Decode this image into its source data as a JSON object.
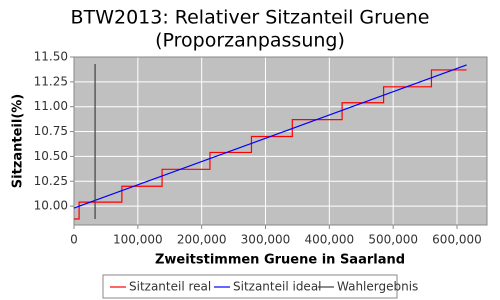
{
  "chart_data": {
    "type": "line",
    "title": "BTW2013: Relativer Sitzanteil Gruene",
    "subtitle": "(Proporzanpassung)",
    "xlabel": "Zweitstimmen Gruene in Saarland",
    "ylabel": "Sitzanteil(%)",
    "xlim": [
      0,
      647000
    ],
    "ylim": [
      9.81,
      11.5
    ],
    "xticks": [
      0,
      {
        "value": 100000,
        "label": "100,000"
      },
      {
        "value": 200000,
        "label": "200,000"
      },
      {
        "value": 300000,
        "label": "300,000"
      },
      {
        "value": 400000,
        "label": "400,000"
      },
      {
        "value": 500000,
        "label": "500,000"
      },
      {
        "value": 600000,
        "label": "600,000"
      }
    ],
    "yticks": [
      {
        "value": 10.0,
        "label": "10.00"
      },
      {
        "value": 10.25,
        "label": "10.25"
      },
      {
        "value": 10.5,
        "label": "10.50"
      },
      {
        "value": 10.75,
        "label": "10.75"
      },
      {
        "value": 11.0,
        "label": "11.00"
      },
      {
        "value": 11.25,
        "label": "11.25"
      },
      {
        "value": 11.5,
        "label": "11.50"
      }
    ],
    "grid": true,
    "legend": "bottom",
    "series": [
      {
        "name": "Sitzanteil real",
        "color": "#ff0000",
        "x": [
          0,
          8000,
          8000,
          75000,
          75000,
          138000,
          138000,
          213000,
          213000,
          278000,
          278000,
          342000,
          342000,
          420000,
          420000,
          485000,
          485000,
          560000,
          560000,
          615000
        ],
        "values": [
          9.87,
          9.87,
          10.04,
          10.04,
          10.2,
          10.2,
          10.37,
          10.37,
          10.54,
          10.54,
          10.7,
          10.7,
          10.87,
          10.87,
          11.04,
          11.04,
          11.2,
          11.2,
          11.37,
          11.37
        ]
      },
      {
        "name": "Sitzanteil ideal",
        "color": "#0000ff",
        "x": [
          0,
          615000
        ],
        "values": [
          9.98,
          11.42
        ]
      },
      {
        "name": "Wahlergebnis",
        "color": "#404040",
        "x": [
          33000,
          33000
        ],
        "values": [
          9.87,
          11.43
        ]
      }
    ]
  }
}
